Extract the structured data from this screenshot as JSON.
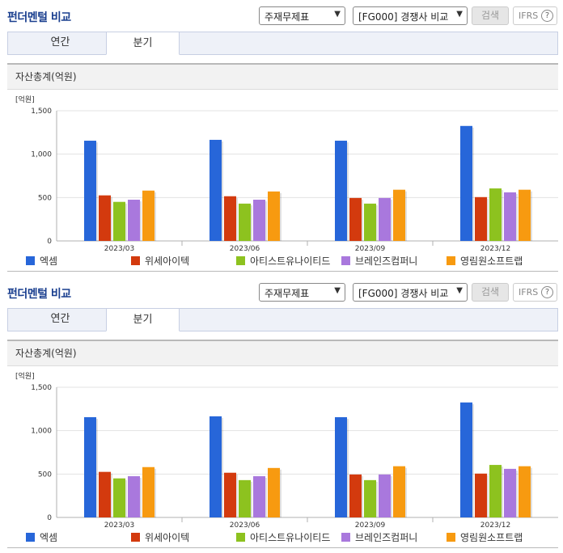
{
  "panels": [
    {
      "title": "펀더멘털 비교",
      "report_select": "주재무제표",
      "compare_select": "[FG000] 경쟁사 비교",
      "search_label": "검색",
      "ifrs_label": "IFRS",
      "help_label": "?",
      "tabs": [
        "연간",
        "분기"
      ],
      "active_tab": "분기",
      "chart_header": "자산총계(억원)",
      "unit_label": "[억원]"
    },
    {
      "title": "펀더멘털 비교",
      "report_select": "주재무제표",
      "compare_select": "[FG000] 경쟁사 비교",
      "search_label": "검색",
      "ifrs_label": "IFRS",
      "help_label": "?",
      "tabs": [
        "연간",
        "분기"
      ],
      "active_tab": "분기",
      "chart_header": "자산총계(억원)",
      "unit_label": "[억원]"
    }
  ],
  "chart_data": [
    {
      "type": "bar",
      "title": "자산총계(억원)",
      "unit": "[억원]",
      "categories": [
        "2023/03",
        "2023/06",
        "2023/09",
        "2023/12"
      ],
      "ylim": [
        0,
        1500
      ],
      "yticks": [
        0,
        500,
        1000,
        1500
      ],
      "ytick_labels": [
        "0",
        "500",
        "1,000",
        "1,500"
      ],
      "grid": true,
      "legend_position": "bottom",
      "series": [
        {
          "name": "엑셈",
          "color": "#2766d9",
          "values": [
            1155,
            1165,
            1155,
            1325
          ]
        },
        {
          "name": "위세아이텍",
          "color": "#d33a0e",
          "values": [
            525,
            515,
            495,
            505
          ]
        },
        {
          "name": "아티스트유나이티드",
          "color": "#8dc21f",
          "values": [
            450,
            430,
            430,
            605
          ]
        },
        {
          "name": "브레인즈컴퍼니",
          "color": "#a978dd",
          "values": [
            475,
            475,
            495,
            560
          ]
        },
        {
          "name": "영림원소프트랩",
          "color": "#f79a10",
          "values": [
            580,
            570,
            590,
            590
          ]
        }
      ]
    },
    {
      "type": "bar",
      "title": "자산총계(억원)",
      "unit": "[억원]",
      "categories": [
        "2023/03",
        "2023/06",
        "2023/09",
        "2023/12"
      ],
      "ylim": [
        0,
        1500
      ],
      "yticks": [
        0,
        500,
        1000,
        1500
      ],
      "ytick_labels": [
        "0",
        "500",
        "1,000",
        "1,500"
      ],
      "grid": true,
      "legend_position": "bottom",
      "series": [
        {
          "name": "엑셈",
          "color": "#2766d9",
          "values": [
            1155,
            1165,
            1155,
            1325
          ]
        },
        {
          "name": "위세아이텍",
          "color": "#d33a0e",
          "values": [
            525,
            515,
            495,
            505
          ]
        },
        {
          "name": "아티스트유나이티드",
          "color": "#8dc21f",
          "values": [
            450,
            430,
            430,
            605
          ]
        },
        {
          "name": "브레인즈컴퍼니",
          "color": "#a978dd",
          "values": [
            475,
            475,
            495,
            560
          ]
        },
        {
          "name": "영림원소프트랩",
          "color": "#f79a10",
          "values": [
            580,
            570,
            590,
            590
          ]
        }
      ]
    }
  ]
}
